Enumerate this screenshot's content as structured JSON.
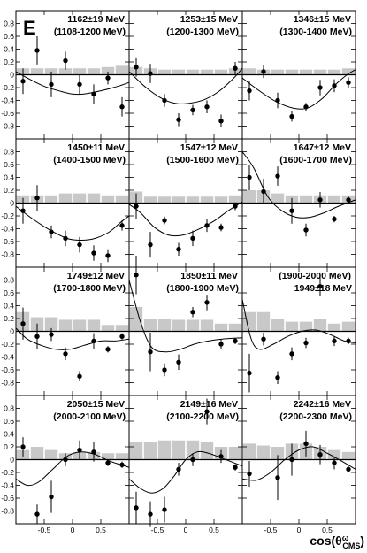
{
  "figure_label": "E",
  "xlabel": "cos(θ",
  "xlabel_sup": "ω",
  "xlabel_sub": "CMS",
  "xlabel_close": ")",
  "chart_data": {
    "type": "scatter",
    "layout": "3x4 panel grid",
    "xlim": [
      -1,
      1
    ],
    "ylim": [
      -1,
      1
    ],
    "y_ticks": [
      -0.8,
      -0.6,
      -0.4,
      -0.2,
      0,
      0.2,
      0.4,
      0.6,
      0.8
    ],
    "y_tick_labels": [
      "-0.8",
      "-0.6",
      "-0.4",
      "-0.2",
      "0",
      "0.2",
      "0.4",
      "0.6",
      "0.8"
    ],
    "x_ticks": [
      -0.5,
      0,
      0.5
    ],
    "x_tick_labels": [
      "-0.5",
      "0",
      "0.5"
    ],
    "x_centers": [
      -0.875,
      -0.625,
      -0.375,
      -0.125,
      0.125,
      0.375,
      0.625,
      0.875
    ],
    "panels": [
      {
        "title": "1162±19 MeV",
        "subtitle": "(1108-1200 MeV)",
        "points": [
          [
            -0.875,
            -0.1,
            0.2
          ],
          [
            -0.625,
            0.38,
            0.22
          ],
          [
            -0.375,
            -0.15,
            0.2
          ],
          [
            -0.125,
            0.22,
            0.14
          ],
          [
            0.125,
            -0.15,
            0.15
          ],
          [
            0.375,
            -0.3,
            0.15
          ],
          [
            0.625,
            -0.05,
            0.1
          ],
          [
            0.875,
            -0.5,
            0.15
          ]
        ],
        "bars": [
          0.1,
          0.1,
          0.1,
          0.1,
          0.1,
          0.1,
          0.12,
          0.14
        ],
        "curve": [
          [
            -1,
            0.05
          ],
          [
            -0.8,
            -0.05
          ],
          [
            -0.5,
            -0.18
          ],
          [
            -0.2,
            -0.26
          ],
          [
            0,
            -0.3
          ],
          [
            0.2,
            -0.3
          ],
          [
            0.5,
            -0.25
          ],
          [
            0.8,
            -0.18
          ],
          [
            1,
            -0.12
          ]
        ]
      },
      {
        "title": "1253±15 MeV",
        "subtitle": "(1200-1300 MeV)",
        "points": [
          [
            -0.875,
            0.12,
            0.15
          ],
          [
            -0.625,
            0.02,
            0.15
          ],
          [
            -0.375,
            -0.4,
            0.1
          ],
          [
            -0.125,
            -0.7,
            0.1
          ],
          [
            0.125,
            -0.55,
            0.08
          ],
          [
            0.375,
            -0.5,
            0.1
          ],
          [
            0.625,
            -0.72,
            0.1
          ],
          [
            0.875,
            0.1,
            0.1
          ]
        ],
        "bars": [
          0.12,
          0.1,
          0.08,
          0.08,
          0.08,
          0.08,
          0.08,
          0.1
        ],
        "curve": [
          [
            -1,
            0.05
          ],
          [
            -0.7,
            -0.2
          ],
          [
            -0.4,
            -0.38
          ],
          [
            -0.15,
            -0.45
          ],
          [
            0.1,
            -0.44
          ],
          [
            0.35,
            -0.38
          ],
          [
            0.6,
            -0.25
          ],
          [
            0.85,
            -0.05
          ],
          [
            1,
            0.1
          ]
        ]
      },
      {
        "title": "1346±15 MeV",
        "subtitle": "(1300-1400 MeV)",
        "points": [
          [
            -0.875,
            -0.25,
            0.15
          ],
          [
            -0.625,
            0.05,
            0.1
          ],
          [
            -0.375,
            -0.4,
            0.12
          ],
          [
            -0.125,
            -0.65,
            0.08
          ],
          [
            0.125,
            -0.5,
            0.06
          ],
          [
            0.375,
            -0.2,
            0.12
          ],
          [
            0.625,
            -0.17,
            0.1
          ],
          [
            0.875,
            -0.12,
            0.08
          ]
        ],
        "bars": [
          0.1,
          0.08,
          0.08,
          0.08,
          0.08,
          0.08,
          0.08,
          0.1
        ],
        "curve": [
          [
            -1,
            -0.05
          ],
          [
            -0.7,
            -0.25
          ],
          [
            -0.4,
            -0.42
          ],
          [
            -0.1,
            -0.52
          ],
          [
            0.15,
            -0.52
          ],
          [
            0.4,
            -0.38
          ],
          [
            0.65,
            -0.15
          ],
          [
            0.85,
            0.0
          ],
          [
            1,
            0.08
          ]
        ]
      },
      {
        "title": "1450±11 MeV",
        "subtitle": "(1400-1500 MeV)",
        "points": [
          [
            -0.875,
            -0.12,
            0.2
          ],
          [
            -0.625,
            0.08,
            0.2
          ],
          [
            -0.375,
            -0.45,
            0.1
          ],
          [
            -0.125,
            -0.55,
            0.12
          ],
          [
            0.125,
            -0.65,
            0.12
          ],
          [
            0.375,
            -0.78,
            0.12
          ],
          [
            0.625,
            -0.82,
            0.1
          ],
          [
            0.875,
            -0.35,
            0.08
          ]
        ],
        "bars": [
          0.12,
          0.12,
          0.12,
          0.15,
          0.15,
          0.15,
          0.12,
          0.12
        ],
        "curve": [
          [
            -1,
            -0.05
          ],
          [
            -0.7,
            -0.25
          ],
          [
            -0.4,
            -0.42
          ],
          [
            -0.1,
            -0.55
          ],
          [
            0.15,
            -0.58
          ],
          [
            0.4,
            -0.55
          ],
          [
            0.65,
            -0.45
          ],
          [
            0.85,
            -0.3
          ],
          [
            1,
            -0.2
          ]
        ]
      },
      {
        "title": "1547±12 MeV",
        "subtitle": "(1500-1600 MeV)",
        "points": [
          [
            -0.875,
            -0.05,
            0.2
          ],
          [
            -0.625,
            -0.65,
            0.2
          ],
          [
            -0.375,
            -0.27,
            0.06
          ],
          [
            -0.125,
            -0.72,
            0.1
          ],
          [
            0.125,
            -0.55,
            0.12
          ],
          [
            0.375,
            -0.35,
            0.1
          ],
          [
            0.625,
            -0.38,
            0.06
          ],
          [
            0.875,
            -0.05,
            0.06
          ]
        ],
        "bars": [
          0.18,
          0.1,
          0.1,
          0.1,
          0.1,
          0.1,
          0.1,
          0.12
        ],
        "curve": [
          [
            -1,
            -0.02
          ],
          [
            -0.8,
            -0.15
          ],
          [
            -0.55,
            -0.38
          ],
          [
            -0.3,
            -0.5
          ],
          [
            -0.05,
            -0.5
          ],
          [
            0.2,
            -0.42
          ],
          [
            0.5,
            -0.28
          ],
          [
            0.75,
            -0.12
          ],
          [
            1,
            0.02
          ]
        ]
      },
      {
        "title": "1647±12 MeV",
        "subtitle": "(1600-1700 MeV)",
        "points": [
          [
            -0.875,
            0.4,
            0.2
          ],
          [
            -0.625,
            0.18,
            0.2
          ],
          [
            -0.375,
            0.42,
            0.15
          ],
          [
            -0.125,
            -0.12,
            0.2
          ],
          [
            0.125,
            -0.42,
            0.1
          ],
          [
            0.375,
            0.05,
            0.12
          ],
          [
            0.625,
            -0.25,
            0.05
          ],
          [
            0.875,
            0.05,
            0.05
          ]
        ],
        "bars": [
          0.2,
          0.2,
          0.15,
          0.12,
          0.12,
          0.12,
          0.12,
          0.12
        ],
        "curve": [
          [
            -1,
            0.8
          ],
          [
            -0.8,
            0.55
          ],
          [
            -0.55,
            0.1
          ],
          [
            -0.3,
            -0.12
          ],
          [
            -0.05,
            -0.22
          ],
          [
            0.2,
            -0.22
          ],
          [
            0.45,
            -0.15
          ],
          [
            0.7,
            -0.05
          ],
          [
            1,
            0.05
          ]
        ]
      },
      {
        "title": "1749±12 MeV",
        "subtitle": "(1700-1800 MeV)",
        "points": [
          [
            -0.875,
            0.12,
            0.25
          ],
          [
            -0.625,
            -0.08,
            0.2
          ],
          [
            -0.375,
            -0.05,
            0.1
          ],
          [
            -0.125,
            -0.35,
            0.1
          ],
          [
            0.125,
            -0.7,
            0.08
          ],
          [
            0.375,
            -0.15,
            0.12
          ],
          [
            0.625,
            -0.28,
            0.05
          ],
          [
            0.875,
            -0.08,
            0.05
          ]
        ],
        "bars": [
          0.3,
          0.22,
          0.22,
          0.18,
          0.18,
          0.18,
          0.1,
          0.1
        ],
        "curve": [
          [
            -1,
            0.05
          ],
          [
            -0.8,
            -0.12
          ],
          [
            -0.55,
            -0.22
          ],
          [
            -0.3,
            -0.28
          ],
          [
            -0.05,
            -0.28
          ],
          [
            0.2,
            -0.22
          ],
          [
            0.5,
            -0.15
          ],
          [
            0.75,
            -0.15
          ],
          [
            1,
            -0.12
          ]
        ]
      },
      {
        "title": "1850±11 MeV",
        "subtitle": "(1800-1900 MeV)",
        "points": [
          [
            -0.875,
            0.88,
            0.3
          ],
          [
            -0.625,
            -0.32,
            0.3
          ],
          [
            -0.375,
            -0.6,
            0.1
          ],
          [
            -0.125,
            -0.48,
            0.12
          ],
          [
            0.125,
            0.3,
            0.08
          ],
          [
            0.375,
            0.45,
            0.12
          ],
          [
            0.625,
            -0.2,
            0.08
          ],
          [
            0.875,
            -0.15,
            0.05
          ]
        ],
        "bars": [
          0.38,
          0.2,
          0.2,
          0.18,
          0.18,
          0.18,
          0.12,
          0.12
        ],
        "curve": [
          [
            -1,
            0.8
          ],
          [
            -0.8,
            0.15
          ],
          [
            -0.6,
            -0.25
          ],
          [
            -0.35,
            -0.32
          ],
          [
            -0.1,
            -0.28
          ],
          [
            0.15,
            -0.2
          ],
          [
            0.4,
            -0.15
          ],
          [
            0.65,
            -0.12
          ],
          [
            1,
            -0.1
          ]
        ]
      },
      {
        "title": "(1900-2000 MeV)",
        "subtitle": "1949±18 MeV",
        "points": [
          [
            -0.875,
            -0.65,
            0.3
          ],
          [
            -0.625,
            -0.12,
            0.1
          ],
          [
            -0.375,
            -0.72,
            0.1
          ],
          [
            -0.125,
            -0.35,
            0.1
          ],
          [
            0.125,
            -0.18,
            0.08
          ],
          [
            0.375,
            0.7,
            0.15
          ],
          [
            0.625,
            -0.15,
            0.08
          ],
          [
            0.875,
            -0.15,
            0.05
          ]
        ],
        "bars": [
          0.3,
          0.3,
          0.2,
          0.15,
          0.15,
          0.2,
          0.12,
          0.15
        ],
        "curve": [
          [
            -1,
            0.5
          ],
          [
            -0.85,
            -0.1
          ],
          [
            -0.7,
            -0.28
          ],
          [
            -0.45,
            -0.2
          ],
          [
            -0.2,
            -0.08
          ],
          [
            0.05,
            0.0
          ],
          [
            0.3,
            0.02
          ],
          [
            0.55,
            -0.05
          ],
          [
            0.8,
            -0.15
          ],
          [
            1,
            -0.18
          ]
        ]
      },
      {
        "title": "2050±15 MeV",
        "subtitle": "(2000-2100 MeV)",
        "points": [
          [
            -0.875,
            0.2,
            0.15
          ],
          [
            -0.625,
            -0.85,
            0.15
          ],
          [
            -0.375,
            -0.58,
            0.25
          ],
          [
            -0.125,
            0.0,
            0.1
          ],
          [
            0.125,
            0.15,
            0.15
          ],
          [
            0.375,
            0.12,
            0.15
          ],
          [
            0.625,
            -0.05,
            0.05
          ],
          [
            0.875,
            -0.08,
            0.05
          ]
        ],
        "bars": [
          0.15,
          0.2,
          0.15,
          0.1,
          0.12,
          0.12,
          0.1,
          0.1
        ],
        "curve": [
          [
            -1,
            -0.3
          ],
          [
            -0.8,
            -0.4
          ],
          [
            -0.6,
            -0.35
          ],
          [
            -0.35,
            -0.15
          ],
          [
            -0.1,
            0.05
          ],
          [
            0.15,
            0.12
          ],
          [
            0.4,
            0.08
          ],
          [
            0.65,
            -0.02
          ],
          [
            1,
            -0.12
          ]
        ]
      },
      {
        "title": "2149±16 MeV",
        "subtitle": "(2100-2200 MeV)",
        "points": [
          [
            -0.875,
            -0.75,
            0.25
          ],
          [
            -0.625,
            -0.85,
            0.2
          ],
          [
            -0.375,
            -0.78,
            0.2
          ],
          [
            -0.125,
            -0.15,
            0.1
          ],
          [
            0.125,
            0.0,
            0.1
          ],
          [
            0.375,
            0.75,
            0.2
          ],
          [
            0.625,
            0.05,
            0.1
          ],
          [
            0.875,
            -0.12,
            0.05
          ]
        ],
        "bars": [
          0.28,
          0.28,
          0.3,
          0.3,
          0.3,
          0.28,
          0.2,
          0.2
        ],
        "curve": [
          [
            -1,
            -0.3
          ],
          [
            -0.8,
            -0.45
          ],
          [
            -0.6,
            -0.52
          ],
          [
            -0.4,
            -0.45
          ],
          [
            -0.2,
            -0.25
          ],
          [
            0.0,
            0.0
          ],
          [
            0.2,
            0.12
          ],
          [
            0.4,
            0.1
          ],
          [
            0.65,
            0.02
          ],
          [
            1,
            -0.1
          ]
        ]
      },
      {
        "title": "2242±16 MeV",
        "subtitle": "(2200-2300 MeV)",
        "points": [
          [
            -0.875,
            -0.22,
            0.2
          ],
          [
            -0.375,
            -0.28,
            0.35
          ],
          [
            -0.125,
            0.0,
            0.25
          ],
          [
            0.125,
            0.25,
            0.2
          ],
          [
            0.375,
            0.08,
            0.15
          ],
          [
            0.625,
            -0.05,
            0.1
          ],
          [
            0.875,
            -0.15,
            0.05
          ]
        ],
        "bars": [
          0.25,
          0.22,
          0.2,
          0.25,
          0.25,
          0.2,
          0.15,
          0.12
        ],
        "curve": [
          [
            -1,
            -0.3
          ],
          [
            -0.75,
            -0.32
          ],
          [
            -0.5,
            -0.2
          ],
          [
            -0.25,
            0.0
          ],
          [
            0.0,
            0.15
          ],
          [
            0.25,
            0.2
          ],
          [
            0.5,
            0.1
          ],
          [
            0.75,
            -0.02
          ],
          [
            1,
            -0.15
          ]
        ]
      }
    ]
  }
}
